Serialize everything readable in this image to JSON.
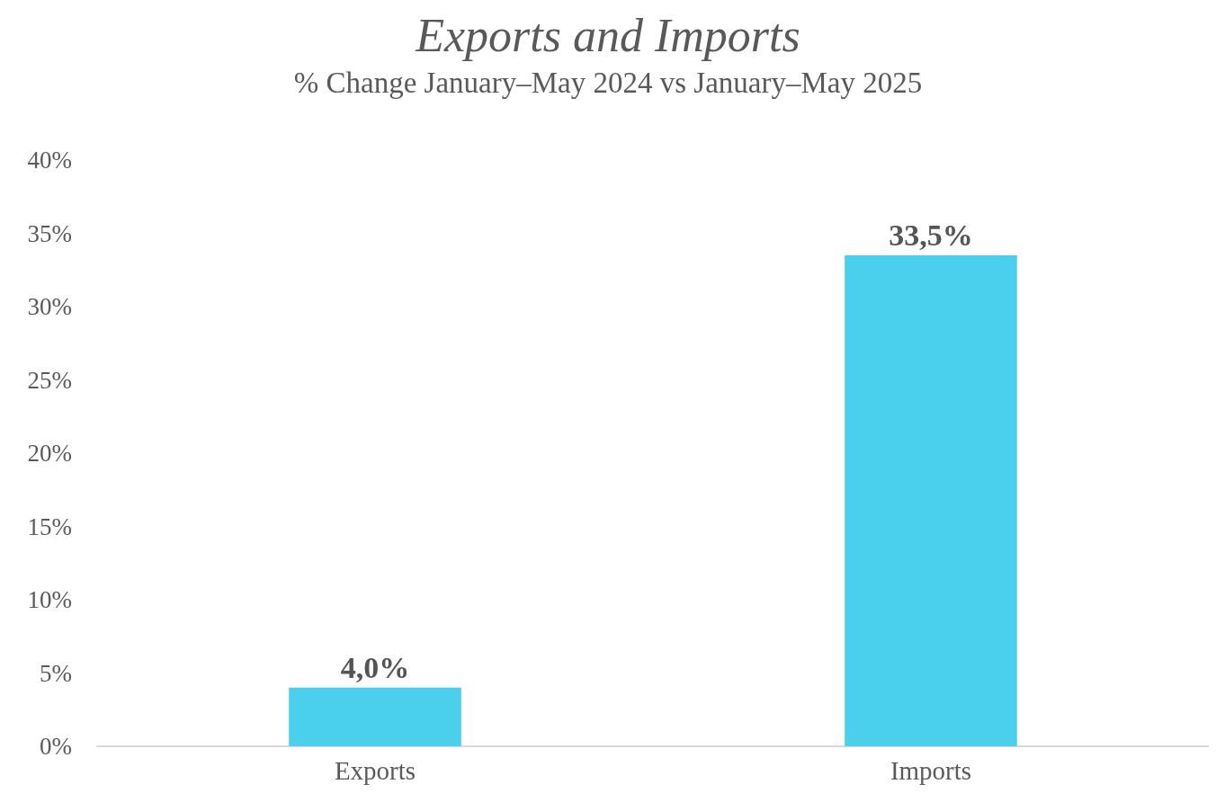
{
  "chart_data": {
    "type": "bar",
    "title": "Exports and Imports",
    "subtitle": "% Change January–May 2024 vs January–May 2025",
    "categories": [
      "Exports",
      "Imports"
    ],
    "values": [
      4.0,
      33.5
    ],
    "value_labels": [
      "4,0%",
      "33,5%"
    ],
    "color": "#4acfec",
    "ylim": [
      0,
      40
    ],
    "yticks": [
      {
        "value": 0,
        "label": "0%"
      },
      {
        "value": 5,
        "label": "5%"
      },
      {
        "value": 10,
        "label": "10%"
      },
      {
        "value": 15,
        "label": "15%"
      },
      {
        "value": 20,
        "label": "20%"
      },
      {
        "value": 25,
        "label": "25%"
      },
      {
        "value": 30,
        "label": "30%"
      },
      {
        "value": 35,
        "label": "35%"
      },
      {
        "value": 40,
        "label": "40%"
      }
    ],
    "grid": false
  }
}
